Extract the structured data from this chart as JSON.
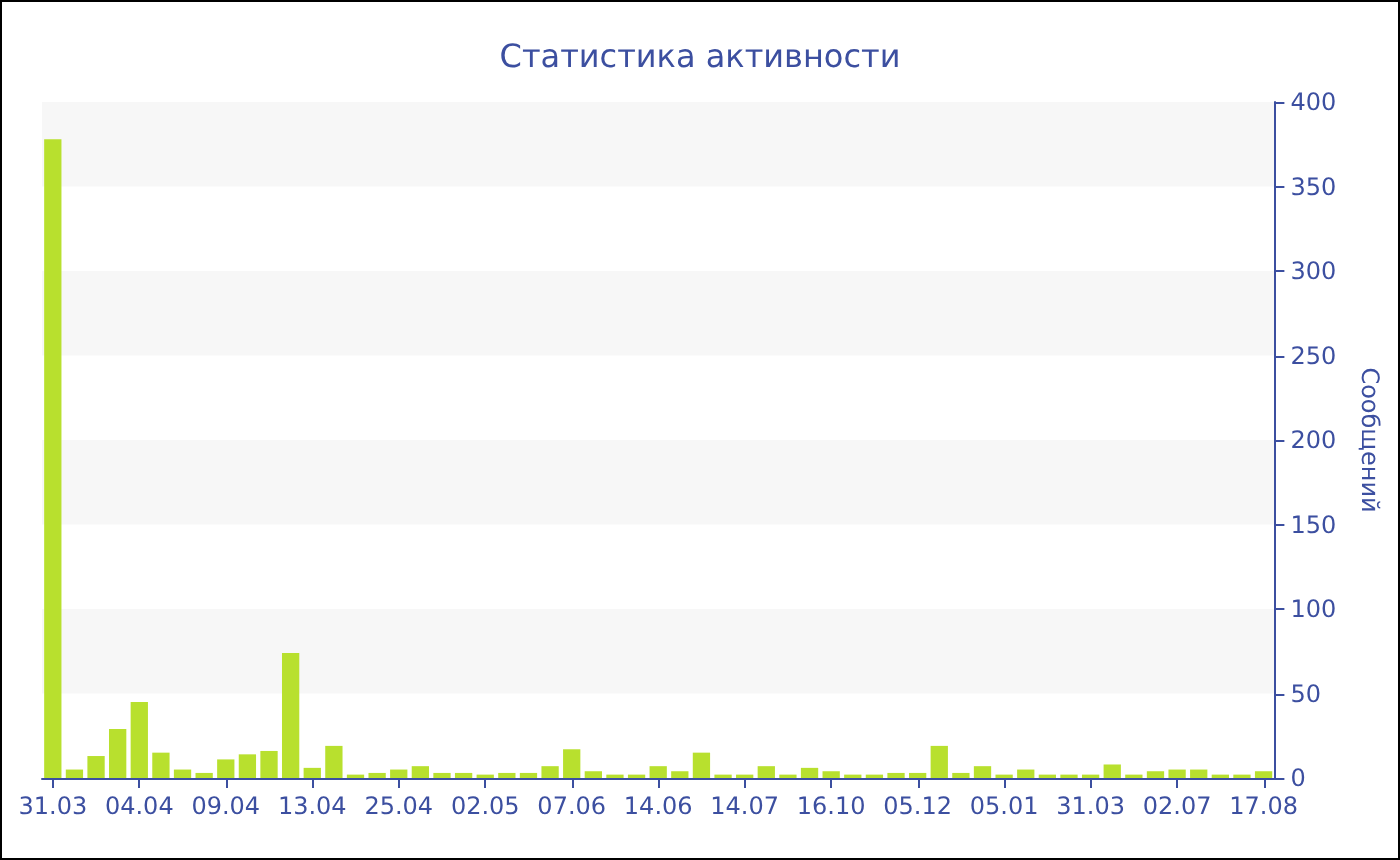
{
  "chart_data": {
    "type": "bar",
    "title": "Статистика активности",
    "ylabel": "Сообщений",
    "categories": [
      "31.03",
      null,
      null,
      null,
      "04.04",
      null,
      null,
      null,
      "09.04",
      null,
      null,
      null,
      "13.04",
      null,
      null,
      null,
      "25.04",
      null,
      null,
      null,
      "02.05",
      null,
      null,
      null,
      "07.06",
      null,
      null,
      null,
      "14.06",
      null,
      null,
      null,
      "14.07",
      null,
      null,
      null,
      "16.10",
      null,
      null,
      null,
      "05.12",
      null,
      null,
      null,
      "05.01",
      null,
      null,
      null,
      "31.03",
      null,
      null,
      null,
      "02.07",
      null,
      null,
      null,
      "17.08"
    ],
    "values": [
      378,
      5,
      13,
      29,
      45,
      15,
      5,
      3,
      11,
      14,
      16,
      74,
      6,
      19,
      2,
      3,
      5,
      7,
      3,
      3,
      2,
      3,
      3,
      7,
      17,
      4,
      2,
      2,
      7,
      4,
      15,
      2,
      2,
      7,
      2,
      6,
      4,
      2,
      2,
      3,
      3,
      19,
      3,
      7,
      2,
      5,
      2,
      2,
      2,
      8,
      2,
      4,
      5,
      5,
      2,
      2,
      4
    ],
    "color": "#b8e02e",
    "ylim": [
      0,
      400
    ],
    "yticks": [
      0,
      50,
      100,
      150,
      200,
      250,
      300,
      350,
      400
    ]
  }
}
